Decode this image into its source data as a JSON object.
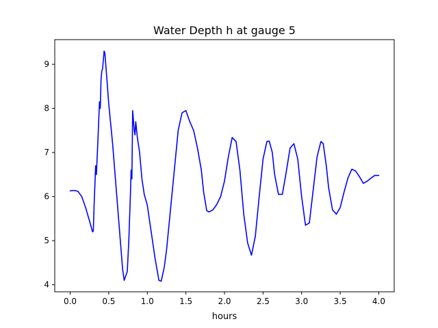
{
  "chart_data": {
    "type": "line",
    "title": "Water Depth h at gauge 5",
    "xlabel": "hours",
    "ylabel": "",
    "xlim": [
      -0.2,
      4.2
    ],
    "ylim": [
      3.84,
      9.56
    ],
    "xticks": [
      0.0,
      0.5,
      1.0,
      1.5,
      2.0,
      2.5,
      3.0,
      3.5,
      4.0
    ],
    "xtick_labels": [
      "0.0",
      "0.5",
      "1.0",
      "1.5",
      "2.0",
      "2.5",
      "3.0",
      "3.5",
      "4.0"
    ],
    "yticks": [
      4,
      5,
      6,
      7,
      8,
      9
    ],
    "ytick_labels": [
      "4",
      "5",
      "6",
      "7",
      "8",
      "9"
    ],
    "grid": false,
    "series": [
      {
        "color": "#0000ff",
        "x": [
          0.0,
          0.05,
          0.1,
          0.15,
          0.2,
          0.25,
          0.29,
          0.3,
          0.31,
          0.33,
          0.34,
          0.36,
          0.38,
          0.39,
          0.4,
          0.41,
          0.42,
          0.44,
          0.45,
          0.47,
          0.5,
          0.55,
          0.6,
          0.65,
          0.68,
          0.7,
          0.72,
          0.74,
          0.76,
          0.78,
          0.79,
          0.8,
          0.81,
          0.83,
          0.84,
          0.85,
          0.87,
          0.9,
          0.93,
          0.96,
          1.0,
          1.05,
          1.1,
          1.15,
          1.18,
          1.22,
          1.25,
          1.3,
          1.35,
          1.4,
          1.45,
          1.5,
          1.55,
          1.6,
          1.65,
          1.7,
          1.73,
          1.77,
          1.8,
          1.85,
          1.9,
          1.95,
          2.0,
          2.05,
          2.1,
          2.15,
          2.2,
          2.25,
          2.3,
          2.35,
          2.4,
          2.45,
          2.5,
          2.55,
          2.58,
          2.62,
          2.65,
          2.7,
          2.75,
          2.8,
          2.85,
          2.9,
          2.95,
          3.0,
          3.05,
          3.1,
          3.15,
          3.2,
          3.25,
          3.28,
          3.32,
          3.35,
          3.4,
          3.45,
          3.5,
          3.55,
          3.6,
          3.65,
          3.7,
          3.75,
          3.8,
          3.85,
          3.9,
          3.95,
          4.0
        ],
        "y": [
          6.13,
          6.14,
          6.12,
          6.0,
          5.75,
          5.45,
          5.2,
          5.22,
          5.8,
          6.7,
          6.5,
          7.3,
          8.15,
          8.0,
          8.65,
          8.85,
          8.9,
          9.3,
          9.25,
          8.8,
          8.1,
          7.2,
          6.1,
          5.0,
          4.35,
          4.1,
          4.2,
          4.3,
          5.0,
          6.0,
          6.6,
          6.4,
          7.95,
          7.5,
          7.4,
          7.7,
          7.35,
          7.0,
          6.4,
          6.05,
          5.8,
          5.2,
          4.6,
          4.1,
          4.08,
          4.4,
          4.8,
          5.7,
          6.6,
          7.5,
          7.9,
          7.95,
          7.7,
          7.5,
          7.1,
          6.6,
          6.1,
          5.68,
          5.65,
          5.7,
          5.82,
          6.0,
          6.35,
          6.9,
          7.34,
          7.25,
          6.6,
          5.6,
          4.95,
          4.67,
          5.1,
          6.0,
          6.85,
          7.25,
          7.26,
          7.0,
          6.5,
          6.05,
          6.05,
          6.55,
          7.1,
          7.2,
          6.85,
          6.0,
          5.35,
          5.4,
          6.15,
          6.9,
          7.25,
          7.2,
          6.7,
          6.2,
          5.7,
          5.6,
          5.75,
          6.1,
          6.42,
          6.62,
          6.58,
          6.45,
          6.3,
          6.35,
          6.42,
          6.48,
          6.48
        ]
      }
    ]
  }
}
